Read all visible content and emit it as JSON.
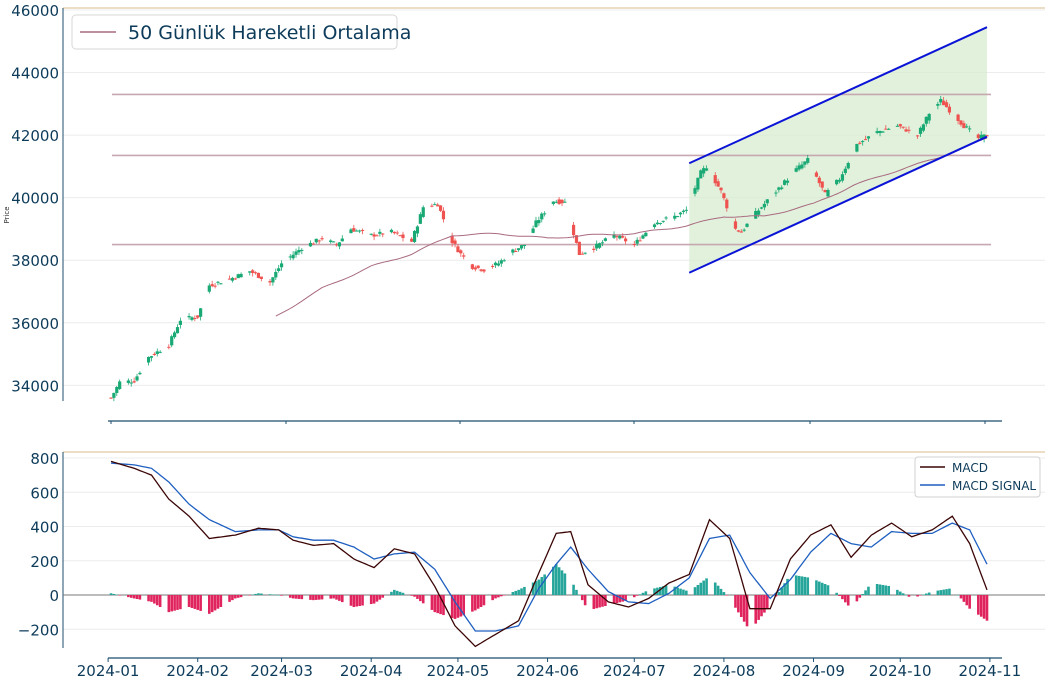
{
  "chart_data": [
    {
      "type": "candlestick",
      "ylabel": "Price",
      "ylim": [
        33500,
        46000
      ],
      "yticks": [
        34000,
        36000,
        38000,
        40000,
        42000,
        44000,
        46000
      ],
      "legend": {
        "placement": "top-left",
        "entries": [
          "50 Günlük Hareketli Ortalama"
        ]
      },
      "grid": true,
      "colors": {
        "up": "#19a974",
        "down": "#ef5350",
        "ma": "#a96a80",
        "channel": "#0b14d6",
        "channel_fill": "#d7ecd0",
        "hlines": "#c7a7b0"
      },
      "horizontal_lines": [
        43300,
        41350,
        38500
      ],
      "channel": {
        "x_start": "2024-07-20",
        "x_end": "2024-10-31",
        "upper": [
          41100,
          45450
        ],
        "lower": [
          37600,
          41950
        ]
      },
      "ohlc_anchors": [
        [
          "2024-01-02",
          33600
        ],
        [
          "2024-01-05",
          34100
        ],
        [
          "2024-01-10",
          34150
        ],
        [
          "2024-01-15",
          34900
        ],
        [
          "2024-01-22",
          35300
        ],
        [
          "2024-01-26",
          36100
        ],
        [
          "2024-02-01",
          36200
        ],
        [
          "2024-02-05",
          37200
        ],
        [
          "2024-02-12",
          37400
        ],
        [
          "2024-02-19",
          37650
        ],
        [
          "2024-02-26",
          37300
        ],
        [
          "2024-03-01",
          37900
        ],
        [
          "2024-03-08",
          38400
        ],
        [
          "2024-03-15",
          38700
        ],
        [
          "2024-03-20",
          38500
        ],
        [
          "2024-03-25",
          39000
        ],
        [
          "2024-04-01",
          38800
        ],
        [
          "2024-04-08",
          38900
        ],
        [
          "2024-04-15",
          38600
        ],
        [
          "2024-04-19",
          39700
        ],
        [
          "2024-04-24",
          39800
        ],
        [
          "2024-04-29",
          38600
        ],
        [
          "2024-05-02",
          38200
        ],
        [
          "2024-05-06",
          37800
        ],
        [
          "2024-05-10",
          37700
        ],
        [
          "2024-05-15",
          37900
        ],
        [
          "2024-05-20",
          38300
        ],
        [
          "2024-05-24",
          38500
        ],
        [
          "2024-05-28",
          39200
        ],
        [
          "2024-06-03",
          39900
        ],
        [
          "2024-06-07",
          39850
        ],
        [
          "2024-06-12",
          38200
        ],
        [
          "2024-06-17",
          38400
        ],
        [
          "2024-06-24",
          38800
        ],
        [
          "2024-07-01",
          38500
        ],
        [
          "2024-07-08",
          39200
        ],
        [
          "2024-07-15",
          39400
        ],
        [
          "2024-07-19",
          39600
        ],
        [
          "2024-07-24",
          40800
        ],
        [
          "2024-07-26",
          41000
        ],
        [
          "2024-07-31",
          40200
        ],
        [
          "2024-08-05",
          39000
        ],
        [
          "2024-08-07",
          38900
        ],
        [
          "2024-08-12",
          39500
        ],
        [
          "2024-08-19",
          40200
        ],
        [
          "2024-08-26",
          40900
        ],
        [
          "2024-08-30",
          41200
        ],
        [
          "2024-09-05",
          40100
        ],
        [
          "2024-09-10",
          40600
        ],
        [
          "2024-09-16",
          41700
        ],
        [
          "2024-09-23",
          42100
        ],
        [
          "2024-09-30",
          42300
        ],
        [
          "2024-10-07",
          42000
        ],
        [
          "2024-10-11",
          42700
        ],
        [
          "2024-10-15",
          43100
        ],
        [
          "2024-10-18",
          42800
        ],
        [
          "2024-10-23",
          42300
        ],
        [
          "2024-10-28",
          41900
        ],
        [
          "2024-10-31",
          42000
        ]
      ],
      "moving_average_anchors": [
        [
          "2024-02-28",
          36200
        ],
        [
          "2024-03-15",
          37100
        ],
        [
          "2024-04-01",
          37800
        ],
        [
          "2024-04-15",
          38200
        ],
        [
          "2024-04-29",
          38800
        ],
        [
          "2024-05-15",
          38850
        ],
        [
          "2024-06-01",
          38700
        ],
        [
          "2024-06-15",
          38800
        ],
        [
          "2024-07-01",
          38850
        ],
        [
          "2024-07-19",
          39100
        ],
        [
          "2024-08-01",
          39400
        ],
        [
          "2024-08-15",
          39400
        ],
        [
          "2024-09-01",
          39800
        ],
        [
          "2024-09-15",
          40400
        ],
        [
          "2024-10-01",
          40900
        ],
        [
          "2024-10-15",
          41300
        ],
        [
          "2024-10-31",
          41900
        ]
      ]
    },
    {
      "type": "line+bar",
      "ylim": [
        -320,
        830
      ],
      "yticks": [
        -200,
        0,
        200,
        400,
        600,
        800
      ],
      "xticks": [
        "2024-01",
        "2024-02",
        "2024-03",
        "2024-04",
        "2024-05",
        "2024-06",
        "2024-07",
        "2024-08",
        "2024-09",
        "2024-10",
        "2024-11"
      ],
      "legend": {
        "placement": "top-right",
        "entries": [
          "MACD",
          "MACD SIGNAL"
        ]
      },
      "colors": {
        "macd": "#3b0505",
        "signal": "#1e5fc0",
        "hist_pos": "#26a69a",
        "hist_neg": "#e0245e",
        "zero": "#7a7a7a"
      },
      "series": [
        {
          "name": "MACD",
          "points": [
            [
              "2024-01-02",
              780
            ],
            [
              "2024-01-10",
              740
            ],
            [
              "2024-01-16",
              700
            ],
            [
              "2024-01-22",
              560
            ],
            [
              "2024-01-29",
              460
            ],
            [
              "2024-02-05",
              330
            ],
            [
              "2024-02-14",
              350
            ],
            [
              "2024-02-22",
              390
            ],
            [
              "2024-02-29",
              380
            ],
            [
              "2024-03-05",
              320
            ],
            [
              "2024-03-12",
              290
            ],
            [
              "2024-03-19",
              300
            ],
            [
              "2024-03-26",
              210
            ],
            [
              "2024-04-02",
              160
            ],
            [
              "2024-04-09",
              270
            ],
            [
              "2024-04-16",
              240
            ],
            [
              "2024-04-23",
              50
            ],
            [
              "2024-04-30",
              -180
            ],
            [
              "2024-05-07",
              -300
            ],
            [
              "2024-05-14",
              -230
            ],
            [
              "2024-05-22",
              -150
            ],
            [
              "2024-05-29",
              130
            ],
            [
              "2024-06-04",
              360
            ],
            [
              "2024-06-09",
              370
            ],
            [
              "2024-06-15",
              60
            ],
            [
              "2024-06-22",
              -40
            ],
            [
              "2024-06-29",
              -70
            ],
            [
              "2024-07-06",
              -20
            ],
            [
              "2024-07-13",
              70
            ],
            [
              "2024-07-20",
              120
            ],
            [
              "2024-07-27",
              440
            ],
            [
              "2024-08-03",
              330
            ],
            [
              "2024-08-10",
              -80
            ],
            [
              "2024-08-17",
              -80
            ],
            [
              "2024-08-24",
              210
            ],
            [
              "2024-08-31",
              350
            ],
            [
              "2024-09-07",
              410
            ],
            [
              "2024-09-14",
              220
            ],
            [
              "2024-09-21",
              350
            ],
            [
              "2024-09-28",
              420
            ],
            [
              "2024-10-05",
              340
            ],
            [
              "2024-10-12",
              380
            ],
            [
              "2024-10-19",
              460
            ],
            [
              "2024-10-25",
              300
            ],
            [
              "2024-10-31",
              30
            ]
          ]
        },
        {
          "name": "MACD SIGNAL",
          "points": [
            [
              "2024-01-02",
              770
            ],
            [
              "2024-01-10",
              760
            ],
            [
              "2024-01-16",
              740
            ],
            [
              "2024-01-22",
              660
            ],
            [
              "2024-01-29",
              530
            ],
            [
              "2024-02-05",
              440
            ],
            [
              "2024-02-14",
              370
            ],
            [
              "2024-02-22",
              380
            ],
            [
              "2024-02-29",
              380
            ],
            [
              "2024-03-05",
              340
            ],
            [
              "2024-03-12",
              320
            ],
            [
              "2024-03-19",
              320
            ],
            [
              "2024-03-26",
              280
            ],
            [
              "2024-04-02",
              210
            ],
            [
              "2024-04-09",
              240
            ],
            [
              "2024-04-16",
              250
            ],
            [
              "2024-04-23",
              150
            ],
            [
              "2024-04-30",
              -40
            ],
            [
              "2024-05-07",
              -210
            ],
            [
              "2024-05-14",
              -210
            ],
            [
              "2024-05-22",
              -180
            ],
            [
              "2024-05-29",
              40
            ],
            [
              "2024-06-04",
              180
            ],
            [
              "2024-06-09",
              280
            ],
            [
              "2024-06-15",
              150
            ],
            [
              "2024-06-22",
              20
            ],
            [
              "2024-06-29",
              -40
            ],
            [
              "2024-07-06",
              -50
            ],
            [
              "2024-07-13",
              10
            ],
            [
              "2024-07-20",
              100
            ],
            [
              "2024-07-27",
              330
            ],
            [
              "2024-08-03",
              350
            ],
            [
              "2024-08-10",
              130
            ],
            [
              "2024-08-17",
              -20
            ],
            [
              "2024-08-24",
              90
            ],
            [
              "2024-08-31",
              250
            ],
            [
              "2024-09-07",
              360
            ],
            [
              "2024-09-14",
              300
            ],
            [
              "2024-09-21",
              280
            ],
            [
              "2024-09-28",
              370
            ],
            [
              "2024-10-05",
              360
            ],
            [
              "2024-10-12",
              360
            ],
            [
              "2024-10-19",
              420
            ],
            [
              "2024-10-25",
              380
            ],
            [
              "2024-10-31",
              180
            ]
          ]
        }
      ]
    }
  ]
}
